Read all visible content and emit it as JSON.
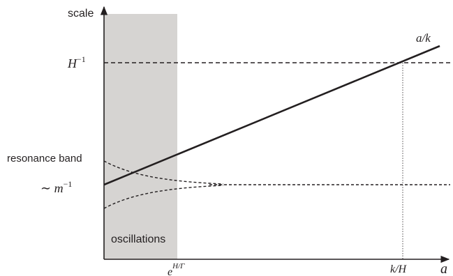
{
  "labels": {
    "y_axis": "scale",
    "x_axis": "a",
    "h_inverse_base": "H",
    "h_inverse_exp": "−1",
    "m_inverse_prefix": "∼ m",
    "m_inverse_exp": "−1",
    "resonance_band": "resonance band",
    "oscillations": "oscillations",
    "line_label": "a/k",
    "x_tick_exp_base": "e",
    "x_tick_exp_sup": "H/Γ",
    "x_tick_crossing": "k/H"
  },
  "colors": {
    "shaded_region": "#d6d4d2",
    "ink": "#231f20"
  }
}
